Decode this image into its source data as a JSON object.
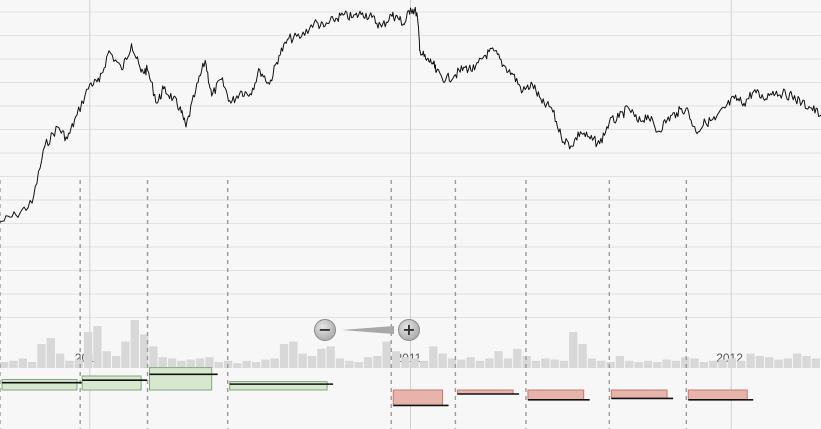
{
  "chart_data": {
    "type": "line",
    "title": "",
    "xlabel": "",
    "ylabel": "",
    "x_ticks": [
      "2010",
      "2011",
      "2012"
    ],
    "x_range": [
      2009.72,
      2012.28
    ],
    "y_range": [
      0,
      100
    ],
    "grid": true,
    "series": [
      {
        "x": [
          2009.72,
          2009.77,
          2009.82,
          2009.86,
          2009.9,
          2009.93,
          2009.96,
          2010.0,
          2010.03,
          2010.06,
          2010.1,
          2010.13,
          2010.16,
          2010.18,
          2010.21,
          2010.23,
          2010.26,
          2010.28,
          2010.3,
          2010.33,
          2010.36,
          2010.38,
          2010.41,
          2010.44,
          2010.47,
          2010.5,
          2010.53,
          2010.56,
          2010.59,
          2010.62,
          2010.66,
          2010.7,
          2010.73,
          2010.76,
          2010.79,
          2010.82,
          2010.85,
          2010.88,
          2010.91,
          2010.94,
          2010.96,
          2010.98,
          2011.0,
          2011.02,
          2011.03,
          2011.05,
          2011.07,
          2011.08,
          2011.11,
          2011.14,
          2011.17,
          2011.2,
          2011.23,
          2011.26,
          2011.29,
          2011.32,
          2011.35,
          2011.38,
          2011.41,
          2011.44,
          2011.47,
          2011.5,
          2011.53,
          2011.56,
          2011.59,
          2011.62,
          2011.65,
          2011.68,
          2011.71,
          2011.74,
          2011.77,
          2011.8,
          2011.83,
          2011.86,
          2011.89,
          2011.92,
          2011.95,
          2011.98,
          2012.01,
          2012.04,
          2012.07,
          2012.1,
          2012.13,
          2012.16,
          2012.19,
          2012.22,
          2012.25,
          2012.28
        ],
        "y": [
          10,
          13,
          18,
          42,
          50,
          45,
          55,
          68,
          69,
          82,
          74,
          85,
          73,
          74,
          60,
          66,
          62,
          58,
          50,
          65,
          78,
          63,
          70,
          60,
          65,
          64,
          74,
          68,
          80,
          87,
          88,
          94,
          92,
          95,
          97,
          96,
          98,
          96,
          92,
          97,
          96,
          93,
          100,
          98,
          82,
          78,
          77,
          73,
          70,
          72,
          75,
          74,
          80,
          82,
          76,
          72,
          65,
          68,
          60,
          58,
          46,
          42,
          48,
          45,
          43,
          52,
          54,
          58,
          52,
          55,
          48,
          53,
          56,
          58,
          48,
          52,
          53,
          58,
          62,
          60,
          65,
          62,
          65,
          64,
          63,
          60,
          58,
          55
        ]
      }
    ],
    "volume": [
      5,
      6,
      8,
      5,
      20,
      25,
      12,
      6,
      7,
      30,
      35,
      14,
      10,
      22,
      40,
      28,
      18,
      9,
      8,
      6,
      7,
      8,
      9,
      5,
      6,
      4,
      6,
      5,
      7,
      8,
      20,
      22,
      12,
      10,
      16,
      18,
      8,
      6,
      5,
      9,
      10,
      22,
      14,
      9,
      8,
      6,
      18,
      12,
      8,
      7,
      9,
      6,
      8,
      14,
      8,
      16,
      10,
      6,
      8,
      7,
      6,
      30,
      20,
      8,
      6,
      5,
      10,
      6,
      5,
      6,
      5,
      7,
      6,
      9,
      8,
      5,
      6,
      7,
      8,
      6,
      12,
      10,
      9,
      7,
      8,
      12,
      10,
      8
    ],
    "segments": [
      {
        "start": 2009.72,
        "end": 2009.96,
        "change": 15
      },
      {
        "start": 2009.97,
        "end": 2010.16,
        "change": 20
      },
      {
        "start": 2010.18,
        "end": 2010.38,
        "change": 32
      },
      {
        "start": 2010.43,
        "end": 2010.74,
        "change": 12
      },
      {
        "start": 2010.94,
        "end": 2011.1,
        "change": -22
      },
      {
        "start": 2011.14,
        "end": 2011.32,
        "change": -4
      },
      {
        "start": 2011.36,
        "end": 2011.54,
        "change": -14
      },
      {
        "start": 2011.62,
        "end": 2011.8,
        "change": -12
      },
      {
        "start": 2011.86,
        "end": 2012.05,
        "change": -14
      }
    ],
    "colors": {
      "line": "#111111",
      "volume": "#d8d8d8",
      "gain": "#d7e8cf",
      "gain_stroke": "#7fa97a",
      "loss": "#e6b4ab",
      "loss_stroke": "#c47a6c",
      "grid": "#e2e2e2",
      "divider": "#9a9a9a"
    }
  },
  "controls": {
    "zoom_out_icon": "minus-circle-icon",
    "zoom_in_icon": "plus-circle-icon",
    "zoom_out_glyph": "−",
    "zoom_in_glyph": "+"
  }
}
